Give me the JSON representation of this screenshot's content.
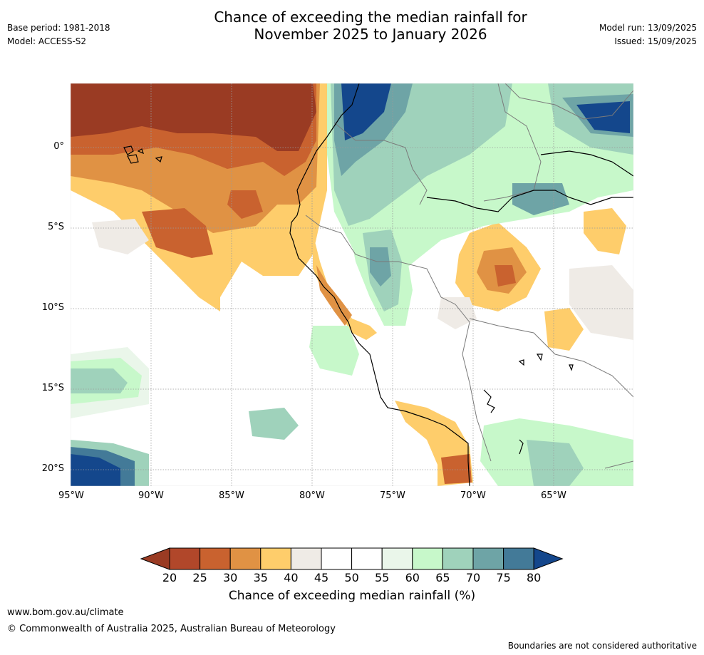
{
  "header": {
    "title_line1": "Chance of exceeding the median rainfall for",
    "title_line2": "November 2025 to January 2026",
    "base_period": "Base period: 1981-2018",
    "model": "Model: ACCESS-S2",
    "model_run": "Model run: 13/09/2025",
    "issued": "Issued: 15/09/2025"
  },
  "map": {
    "x_ticks": [
      "95°W",
      "90°W",
      "85°W",
      "80°W",
      "75°W",
      "70°W",
      "65°W"
    ],
    "y_ticks": [
      "0°",
      "5°S",
      "10°S",
      "15°S",
      "20°S"
    ]
  },
  "colorbar": {
    "ticks": [
      "20",
      "25",
      "30",
      "35",
      "40",
      "45",
      "50",
      "55",
      "60",
      "65",
      "70",
      "75",
      "80"
    ],
    "label": "Chance of exceeding median rainfall (%)",
    "colors": [
      "#9a3b23",
      "#b1472a",
      "#c9622f",
      "#e09244",
      "#fecd6b",
      "#efebe6",
      "#ffffff",
      "#ffffff",
      "#eaf6ea",
      "#c7f8ca",
      "#9fd2bb",
      "#6ea4a6",
      "#437a98",
      "#14478c"
    ]
  },
  "footer": {
    "url": "www.bom.gov.au/climate",
    "copyright": "© Commonwealth of Australia 2025, Australian Bureau of Meteorology",
    "disclaimer": "Boundaries are not considered authoritative"
  }
}
